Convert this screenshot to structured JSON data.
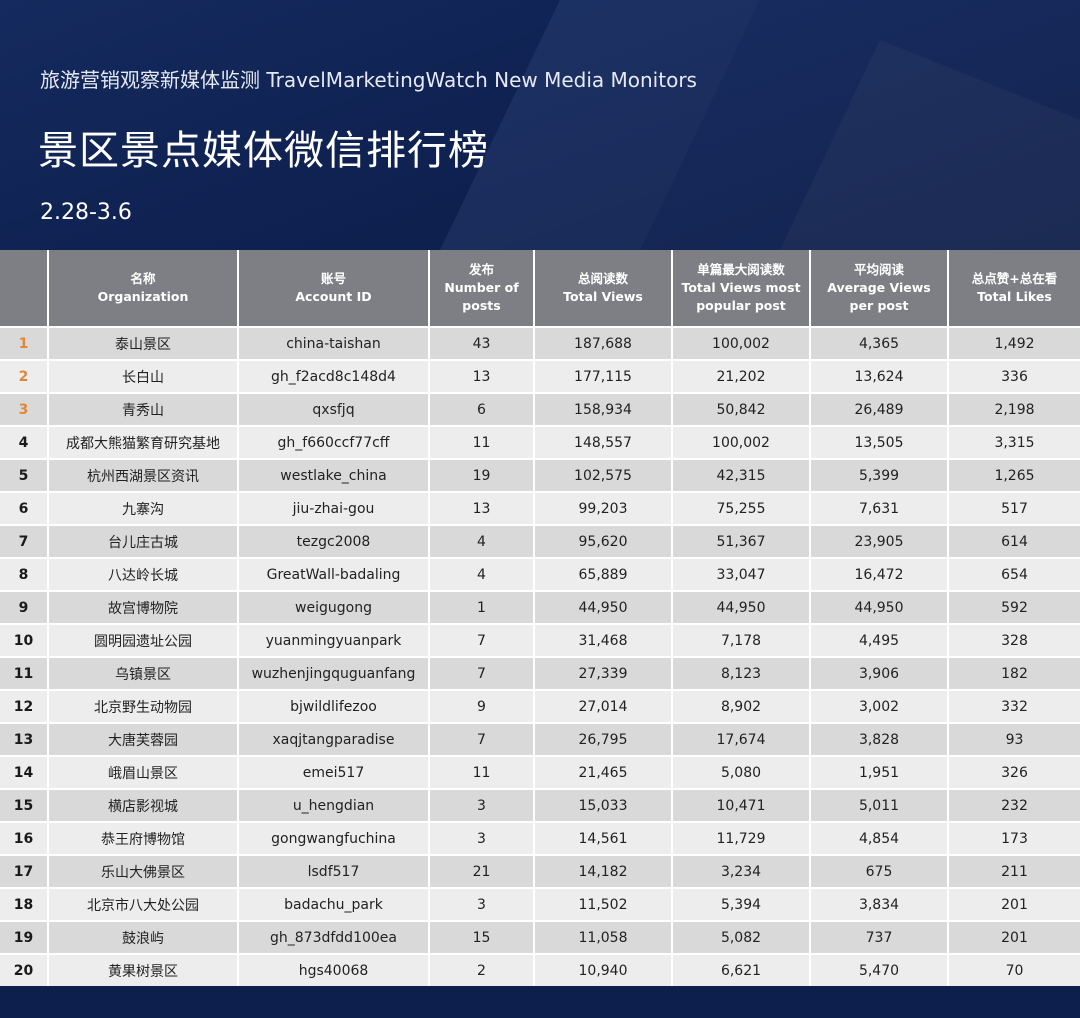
{
  "header": {
    "subtitle": "旅游营销观察新媒体监测 TravelMarketingWatch New Media Monitors",
    "title": "景区景点媒体微信排行榜",
    "date_range": "2.28-3.6"
  },
  "columns": [
    {
      "cn": "",
      "en": ""
    },
    {
      "cn": "名称",
      "en": "Organization"
    },
    {
      "cn": "账号",
      "en": "Account ID"
    },
    {
      "cn": "发布",
      "en": "Number of posts"
    },
    {
      "cn": "总阅读数",
      "en": "Total Views"
    },
    {
      "cn": "单篇最大阅读数",
      "en": "Total Views most popular post"
    },
    {
      "cn": "平均阅读",
      "en": "Average Views per post"
    },
    {
      "cn": "总点赞+总在看",
      "en": "Total Likes"
    }
  ],
  "rows": [
    {
      "rank": "1",
      "org": "泰山景区",
      "account": "china-taishan",
      "posts": "43",
      "total_views": "187,688",
      "max_views": "100,002",
      "avg_views": "4,365",
      "likes": "1,492"
    },
    {
      "rank": "2",
      "org": "长白山",
      "account": "gh_f2acd8c148d4",
      "posts": "13",
      "total_views": "177,115",
      "max_views": "21,202",
      "avg_views": "13,624",
      "likes": "336"
    },
    {
      "rank": "3",
      "org": "青秀山",
      "account": "qxsfjq",
      "posts": "6",
      "total_views": "158,934",
      "max_views": "50,842",
      "avg_views": "26,489",
      "likes": "2,198"
    },
    {
      "rank": "4",
      "org": "成都大熊猫繁育研究基地",
      "account": "gh_f660ccf77cff",
      "posts": "11",
      "total_views": "148,557",
      "max_views": "100,002",
      "avg_views": "13,505",
      "likes": "3,315"
    },
    {
      "rank": "5",
      "org": "杭州西湖景区资讯",
      "account": "westlake_china",
      "posts": "19",
      "total_views": "102,575",
      "max_views": "42,315",
      "avg_views": "5,399",
      "likes": "1,265"
    },
    {
      "rank": "6",
      "org": "九寨沟",
      "account": "jiu-zhai-gou",
      "posts": "13",
      "total_views": "99,203",
      "max_views": "75,255",
      "avg_views": "7,631",
      "likes": "517"
    },
    {
      "rank": "7",
      "org": "台儿庄古城",
      "account": "tezgc2008",
      "posts": "4",
      "total_views": "95,620",
      "max_views": "51,367",
      "avg_views": "23,905",
      "likes": "614"
    },
    {
      "rank": "8",
      "org": "八达岭长城",
      "account": "GreatWall-badaling",
      "posts": "4",
      "total_views": "65,889",
      "max_views": "33,047",
      "avg_views": "16,472",
      "likes": "654"
    },
    {
      "rank": "9",
      "org": "故宫博物院",
      "account": "weigugong",
      "posts": "1",
      "total_views": "44,950",
      "max_views": "44,950",
      "avg_views": "44,950",
      "likes": "592"
    },
    {
      "rank": "10",
      "org": "圆明园遗址公园",
      "account": "yuanmingyuanpark",
      "posts": "7",
      "total_views": "31,468",
      "max_views": "7,178",
      "avg_views": "4,495",
      "likes": "328"
    },
    {
      "rank": "11",
      "org": "乌镇景区",
      "account": "wuzhenjingquguanfang",
      "posts": "7",
      "total_views": "27,339",
      "max_views": "8,123",
      "avg_views": "3,906",
      "likes": "182"
    },
    {
      "rank": "12",
      "org": "北京野生动物园",
      "account": "bjwildlifezoo",
      "posts": "9",
      "total_views": "27,014",
      "max_views": "8,902",
      "avg_views": "3,002",
      "likes": "332"
    },
    {
      "rank": "13",
      "org": "大唐芙蓉园",
      "account": "xaqjtangparadise",
      "posts": "7",
      "total_views": "26,795",
      "max_views": "17,674",
      "avg_views": "3,828",
      "likes": "93"
    },
    {
      "rank": "14",
      "org": "峨眉山景区",
      "account": "emei517",
      "posts": "11",
      "total_views": "21,465",
      "max_views": "5,080",
      "avg_views": "1,951",
      "likes": "326"
    },
    {
      "rank": "15",
      "org": "横店影视城",
      "account": "u_hengdian",
      "posts": "3",
      "total_views": "15,033",
      "max_views": "10,471",
      "avg_views": "5,011",
      "likes": "232"
    },
    {
      "rank": "16",
      "org": "恭王府博物馆",
      "account": "gongwangfuchina",
      "posts": "3",
      "total_views": "14,561",
      "max_views": "11,729",
      "avg_views": "4,854",
      "likes": "173"
    },
    {
      "rank": "17",
      "org": "乐山大佛景区",
      "account": "lsdf517",
      "posts": "21",
      "total_views": "14,182",
      "max_views": "3,234",
      "avg_views": "675",
      "likes": "211"
    },
    {
      "rank": "18",
      "org": "北京市八大处公园",
      "account": "badachu_park",
      "posts": "3",
      "total_views": "11,502",
      "max_views": "5,394",
      "avg_views": "3,834",
      "likes": "201"
    },
    {
      "rank": "19",
      "org": "鼓浪屿",
      "account": "gh_873dfdd100ea",
      "posts": "15",
      "total_views": "11,058",
      "max_views": "5,082",
      "avg_views": "737",
      "likes": "201"
    },
    {
      "rank": "20",
      "org": "黄果树景区",
      "account": "hgs40068",
      "posts": "2",
      "total_views": "10,940",
      "max_views": "6,621",
      "avg_views": "5,470",
      "likes": "70"
    }
  ]
}
